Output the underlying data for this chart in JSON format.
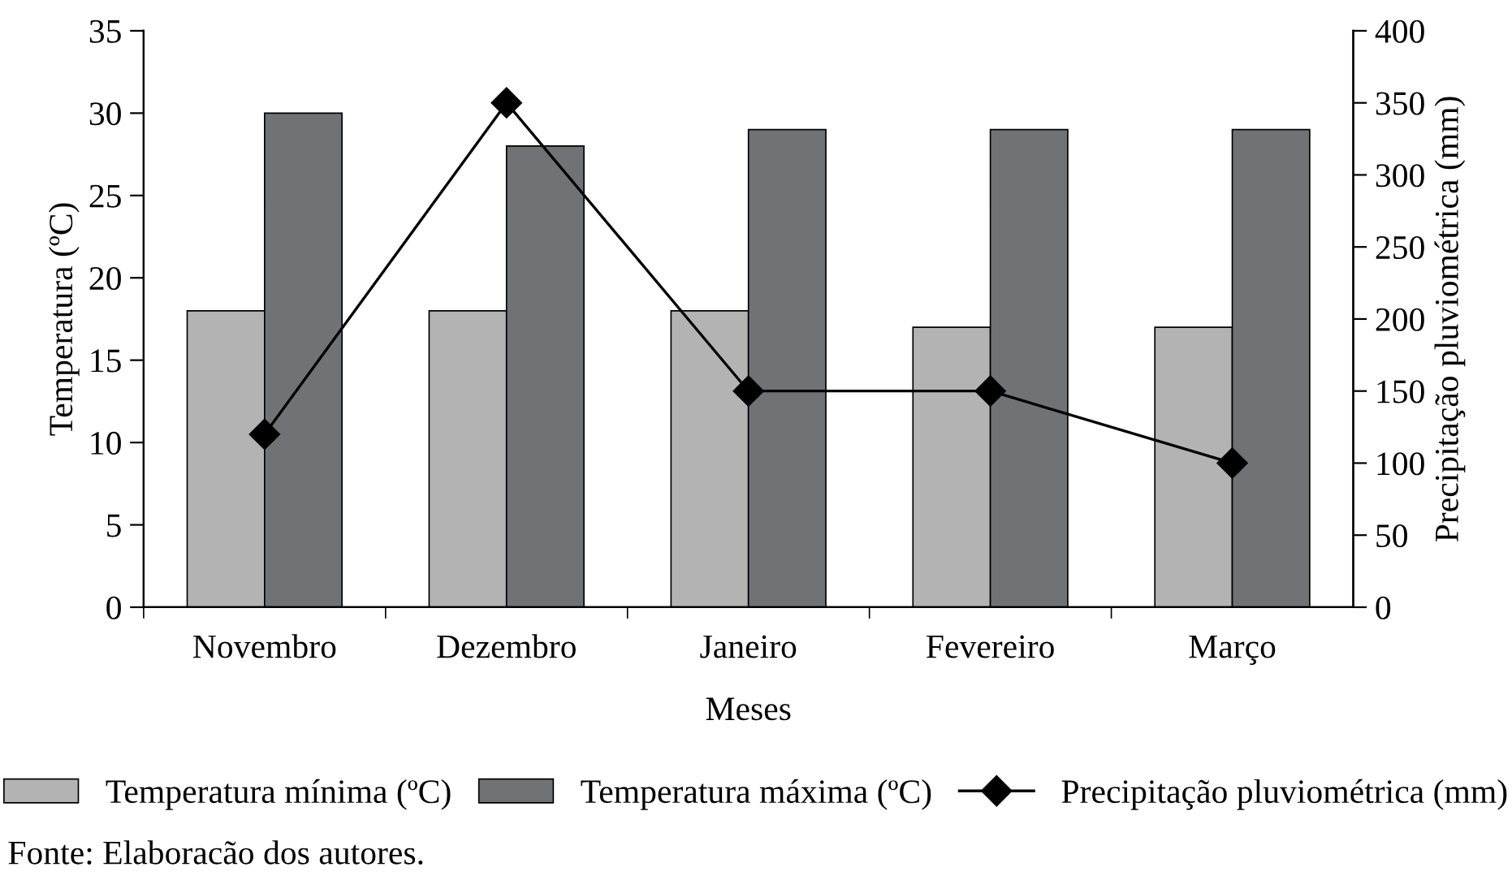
{
  "chart_data": {
    "type": "bar",
    "xlabel": "Meses",
    "ylabel": "Temperatura (ºC)",
    "y2label": "Precipitação pluviométrica (mm)",
    "categories": [
      "Novembro",
      "Dezembro",
      "Janeiro",
      "Fevereiro",
      "Março"
    ],
    "series": [
      {
        "name": "Temperatura mínima (ºC)",
        "color": "#b3b3b3",
        "values": [
          18,
          18,
          18,
          17,
          17
        ]
      },
      {
        "name": "Temperatura máxima (ºC)",
        "color": "#707276",
        "values": [
          30,
          28,
          29,
          29,
          29
        ]
      },
      {
        "name": "Precipitação pluviométrica (mm)",
        "type": "line",
        "axis": "y2",
        "color": "#000000",
        "marker": "diamond",
        "values": [
          120,
          350,
          150,
          150,
          100
        ]
      }
    ],
    "ylim": [
      0,
      35
    ],
    "yticks": [
      0,
      5,
      10,
      15,
      20,
      25,
      30,
      35
    ],
    "y2lim": [
      0,
      400
    ],
    "y2ticks": [
      0,
      50,
      100,
      150,
      200,
      250,
      300,
      350,
      400
    ],
    "grid": false,
    "legend": "bottom",
    "annotations": [
      "Fonte: Elaboracão dos autores."
    ]
  }
}
